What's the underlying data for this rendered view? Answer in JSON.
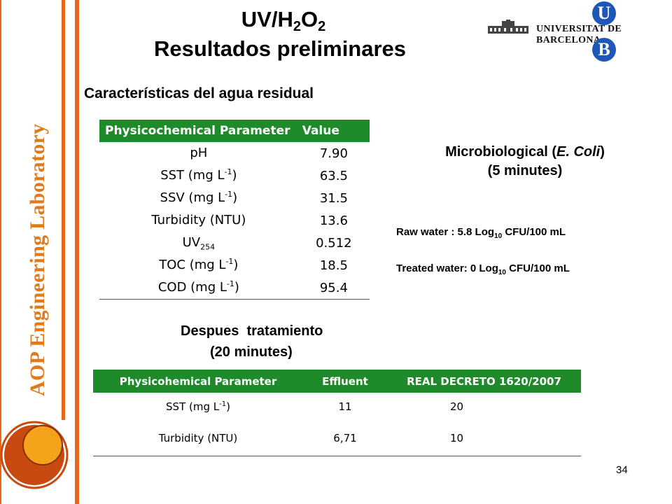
{
  "side_label": "AOP Engineering Laboratory",
  "title": {
    "prefix": "UV/H",
    "sub1": "2",
    "mid": "O",
    "sub2": "2",
    "line2": "Resultados preliminares"
  },
  "logo": {
    "letter_top": "U",
    "letter_bottom": "B",
    "text": "UNIVERSITAT DE BARCELONA"
  },
  "section1": "Características del agua residual",
  "table1": {
    "headers": [
      "Physicochemical Parameter",
      "Value"
    ],
    "rows": [
      {
        "param": "pH",
        "sup": "",
        "sub": "",
        "tail": "",
        "value": "7.90"
      },
      {
        "param": "SST (mg L",
        "sup": "-1",
        "sub": "",
        "tail": ")",
        "value": "63.5"
      },
      {
        "param": "SSV (mg L",
        "sup": "-1",
        "sub": "",
        "tail": ")",
        "value": "31.5"
      },
      {
        "param": "Turbidity (NTU)",
        "sup": "",
        "sub": "",
        "tail": "",
        "value": "13.6"
      },
      {
        "param": "UV",
        "sup": "",
        "sub": "254",
        "tail": "",
        "value": "0.512"
      },
      {
        "param": "TOC (mg L",
        "sup": "-1",
        "sub": "",
        "tail": ")",
        "value": "18.5"
      },
      {
        "param": "COD (mg L",
        "sup": "-1",
        "sub": "",
        "tail": ")",
        "value": "95.4"
      }
    ]
  },
  "micro": {
    "line1_pre": "Microbiological (",
    "line1_italic": "E. Coli",
    "line1_post": ")",
    "line2": "(5 minutes)",
    "raw_pre": "Raw water : 5.8 Log",
    "raw_sub": "10",
    "raw_post": " CFU/100 mL",
    "treated_pre": "Treated water: 0 Log",
    "treated_sub": "10",
    "treated_post": " CFU/100 mL"
  },
  "section2": {
    "line1": "Despues  tratamiento",
    "line2": "(20 minutes)"
  },
  "table2": {
    "headers": [
      "Physicohemical Parameter",
      "Effluent",
      "REAL DECRETO 1620/2007"
    ],
    "rows": [
      {
        "param": "SST (mg L",
        "sup": "-1",
        "tail": ")",
        "effluent": "11",
        "limit": "20"
      },
      {
        "param": "Turbidity (NTU)",
        "sup": "",
        "tail": "",
        "effluent": "6,71",
        "limit": "10"
      }
    ]
  },
  "page_number": "34",
  "colors": {
    "accent_orange": "#e8681a",
    "table_header_green": "#1e8a2a",
    "logo_blue": "#1f57b8",
    "circle_fill": "#f5a31a",
    "circle_ring": "#c84a10"
  }
}
